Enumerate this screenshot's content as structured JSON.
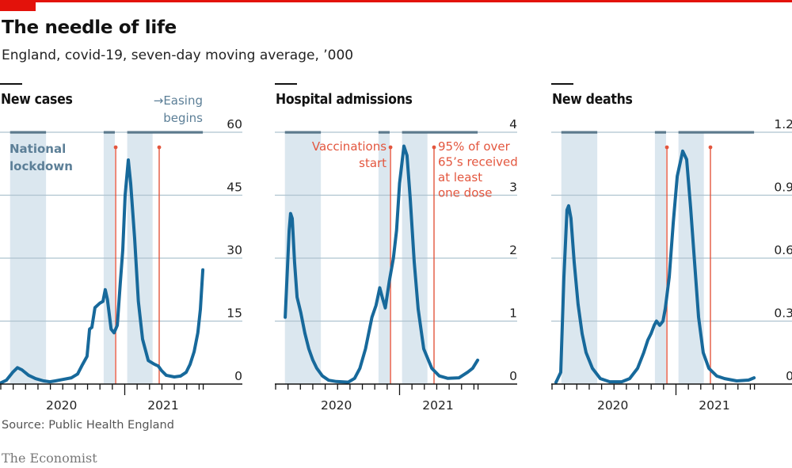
{
  "header": {
    "title": "The needle of life",
    "subtitle": "England, covid-19, seven-day moving average, ’000"
  },
  "footer": {
    "source": "Source: Public Health England",
    "brand": "The Economist"
  },
  "colors": {
    "brand_red": "#e3120b",
    "line": "#17699b",
    "band": "#dbe7ef",
    "band_top": "#5c7a8d",
    "grid": "#aec3cf",
    "marker": "#e3563e",
    "annotation": "#5c7f97"
  },
  "annotations": {
    "lockdown_label": [
      "National",
      "lockdown"
    ],
    "easing_label": [
      "→Easing",
      "begins"
    ],
    "vaccinations_label": [
      "Vaccinations",
      "start"
    ],
    "over65_label": [
      "95% of over",
      "65’s received",
      "at least",
      "one dose"
    ]
  },
  "chart_data": [
    {
      "type": "line",
      "title": "New cases",
      "x_unit": "months since 1 Mar 2020",
      "xlabel": "",
      "ylabel": "",
      "ylim": [
        0,
        60
      ],
      "yticks": [
        0,
        15,
        30,
        45,
        60
      ],
      "xlim": [
        -0.1,
        16.4
      ],
      "xtick_labels": [
        {
          "label": "2020",
          "at": 4.9
        },
        {
          "label": "2021",
          "at": 13.1
        }
      ],
      "year_tick": 10,
      "lockdowns": [
        [
          0.75,
          3.65
        ],
        [
          8.3,
          9.2
        ],
        [
          10.2,
          12.25
        ]
      ],
      "easing_end": 16.3,
      "markers": [
        {
          "name": "Vaccinations start",
          "at": 9.27
        },
        {
          "name": "95% of over 65's received at least one dose",
          "at": 12.78
        }
      ],
      "series": [
        {
          "name": "New cases ('000)",
          "points": [
            [
              -0.06,
              0.2
            ],
            [
              0.45,
              0.9
            ],
            [
              0.96,
              2.8
            ],
            [
              1.34,
              3.9
            ],
            [
              1.7,
              3.4
            ],
            [
              2.24,
              2.1
            ],
            [
              2.8,
              1.3
            ],
            [
              3.45,
              0.75
            ],
            [
              3.96,
              0.55
            ],
            [
              4.4,
              0.75
            ],
            [
              5.0,
              1.1
            ],
            [
              5.7,
              1.5
            ],
            [
              6.2,
              2.4
            ],
            [
              6.6,
              4.7
            ],
            [
              6.96,
              6.6
            ],
            [
              7.16,
              13.1
            ],
            [
              7.35,
              13.5
            ],
            [
              7.6,
              18.2
            ],
            [
              8.0,
              19.3
            ],
            [
              8.24,
              19.7
            ],
            [
              8.43,
              22.5
            ],
            [
              8.6,
              20.2
            ],
            [
              8.9,
              13.1
            ],
            [
              9.14,
              12.2
            ],
            [
              9.4,
              14.0
            ],
            [
              9.65,
              24.4
            ],
            [
              9.84,
              31.9
            ],
            [
              10.03,
              45.0
            ],
            [
              10.29,
              53.4
            ],
            [
              10.48,
              47.8
            ],
            [
              10.8,
              34.7
            ],
            [
              11.1,
              19.7
            ],
            [
              11.44,
              10.7
            ],
            [
              11.9,
              5.6
            ],
            [
              12.4,
              4.7
            ],
            [
              12.7,
              4.3
            ],
            [
              12.97,
              3.2
            ],
            [
              13.35,
              2.1
            ],
            [
              14.0,
              1.7
            ],
            [
              14.5,
              1.9
            ],
            [
              14.95,
              2.8
            ],
            [
              15.27,
              4.7
            ],
            [
              15.6,
              7.7
            ],
            [
              15.9,
              12.2
            ],
            [
              16.1,
              17.8
            ],
            [
              16.3,
              27.2
            ]
          ]
        }
      ]
    },
    {
      "type": "line",
      "title": "Hospital admissions",
      "x_unit": "months since 1 Mar 2020",
      "xlabel": "",
      "ylabel": "",
      "ylim": [
        0,
        4
      ],
      "yticks": [
        0,
        1,
        2,
        3,
        4
      ],
      "xlim": [
        -0.1,
        16.4
      ],
      "xtick_labels": [
        {
          "label": "2020",
          "at": 4.9
        },
        {
          "label": "2021",
          "at": 13.1
        }
      ],
      "year_tick": 10,
      "lockdowns": [
        [
          0.75,
          3.65
        ],
        [
          8.3,
          9.2
        ],
        [
          10.2,
          12.25
        ]
      ],
      "easing_end": 16.3,
      "markers": [
        {
          "name": "Vaccinations start",
          "at": 9.27
        },
        {
          "name": "95% of over 65's received at least one dose",
          "at": 12.78
        }
      ],
      "series": [
        {
          "name": "Hospital admissions ('000)",
          "points": [
            [
              0.77,
              1.06
            ],
            [
              1.09,
              2.44
            ],
            [
              1.21,
              2.71
            ],
            [
              1.34,
              2.63
            ],
            [
              1.53,
              1.94
            ],
            [
              1.73,
              1.38
            ],
            [
              2.04,
              1.13
            ],
            [
              2.36,
              0.81
            ],
            [
              2.68,
              0.56
            ],
            [
              3.0,
              0.38
            ],
            [
              3.32,
              0.25
            ],
            [
              3.77,
              0.13
            ],
            [
              4.28,
              0.06
            ],
            [
              4.9,
              0.04
            ],
            [
              5.86,
              0.03
            ],
            [
              6.37,
              0.09
            ],
            [
              6.8,
              0.25
            ],
            [
              7.25,
              0.56
            ],
            [
              7.77,
              1.06
            ],
            [
              8.1,
              1.25
            ],
            [
              8.4,
              1.53
            ],
            [
              8.6,
              1.38
            ],
            [
              8.85,
              1.21
            ],
            [
              9.17,
              1.63
            ],
            [
              9.5,
              2.0
            ],
            [
              9.76,
              2.44
            ],
            [
              10.0,
              3.19
            ],
            [
              10.35,
              3.78
            ],
            [
              10.6,
              3.63
            ],
            [
              10.86,
              2.94
            ],
            [
              11.18,
              1.94
            ],
            [
              11.5,
              1.19
            ],
            [
              11.95,
              0.56
            ],
            [
              12.6,
              0.25
            ],
            [
              13.2,
              0.13
            ],
            [
              13.9,
              0.09
            ],
            [
              14.8,
              0.1
            ],
            [
              15.5,
              0.19
            ],
            [
              15.9,
              0.25
            ],
            [
              16.3,
              0.38
            ]
          ]
        }
      ]
    },
    {
      "type": "line",
      "title": "New deaths",
      "x_unit": "months since 1 Mar 2020",
      "xlabel": "",
      "ylabel": "",
      "ylim": [
        0,
        1.2
      ],
      "yticks": [
        0,
        0.3,
        0.6,
        0.9,
        1.2
      ],
      "xlim": [
        -0.1,
        16.4
      ],
      "xtick_labels": [
        {
          "label": "2020",
          "at": 4.9
        },
        {
          "label": "2021",
          "at": 13.1
        }
      ],
      "year_tick": 10,
      "lockdowns": [
        [
          0.75,
          3.65
        ],
        [
          8.3,
          9.2
        ],
        [
          10.2,
          12.25
        ]
      ],
      "easing_end": 16.3,
      "markers": [
        {
          "name": "Vaccinations start",
          "at": 9.27
        },
        {
          "name": "95% of over 65's received at least one dose",
          "at": 12.78
        }
      ],
      "series": [
        {
          "name": "New deaths ('000)",
          "points": [
            [
              0.32,
              0.008
            ],
            [
              0.7,
              0.056
            ],
            [
              0.96,
              0.51
            ],
            [
              1.21,
              0.83
            ],
            [
              1.34,
              0.85
            ],
            [
              1.53,
              0.79
            ],
            [
              1.79,
              0.58
            ],
            [
              2.1,
              0.38
            ],
            [
              2.43,
              0.24
            ],
            [
              2.75,
              0.15
            ],
            [
              3.26,
              0.075
            ],
            [
              3.9,
              0.026
            ],
            [
              4.66,
              0.011
            ],
            [
              5.62,
              0.011
            ],
            [
              6.26,
              0.026
            ],
            [
              6.9,
              0.075
            ],
            [
              7.4,
              0.15
            ],
            [
              7.73,
              0.21
            ],
            [
              7.99,
              0.24
            ],
            [
              8.24,
              0.28
            ],
            [
              8.43,
              0.3
            ],
            [
              8.69,
              0.28
            ],
            [
              8.95,
              0.3
            ],
            [
              9.14,
              0.36
            ],
            [
              9.46,
              0.51
            ],
            [
              9.78,
              0.77
            ],
            [
              10.1,
              0.99
            ],
            [
              10.54,
              1.11
            ],
            [
              10.86,
              1.07
            ],
            [
              11.18,
              0.84
            ],
            [
              11.5,
              0.58
            ],
            [
              11.82,
              0.32
            ],
            [
              12.2,
              0.15
            ],
            [
              12.65,
              0.075
            ],
            [
              13.3,
              0.038
            ],
            [
              13.93,
              0.026
            ],
            [
              14.9,
              0.015
            ],
            [
              15.85,
              0.019
            ],
            [
              16.3,
              0.03
            ]
          ]
        }
      ]
    }
  ]
}
